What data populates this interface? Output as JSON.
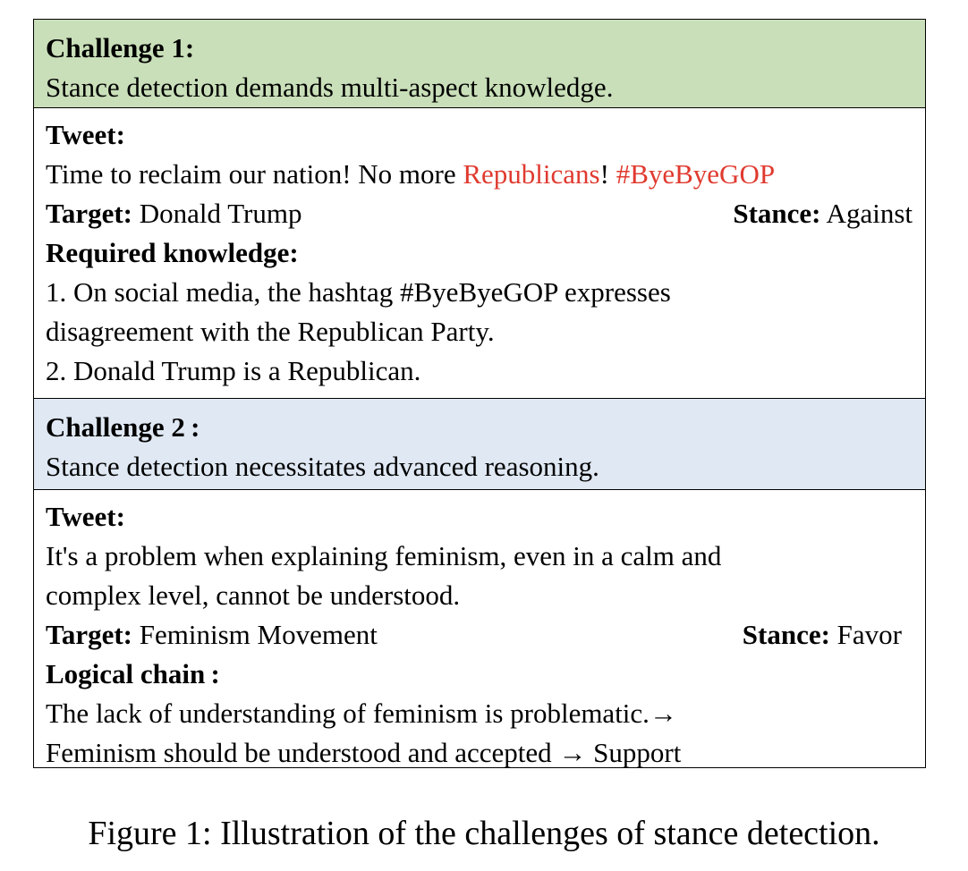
{
  "challenge1": {
    "heading": "Challenge 1:",
    "description": "Stance detection demands multi-aspect knowledge."
  },
  "example1": {
    "tweet_label": "Tweet:",
    "tweet_text_start": "Time to reclaim our nation! No more ",
    "tweet_highlight_1": "Republicans",
    "tweet_text_mid": "! ",
    "tweet_highlight_2": "#ByeByeGOP",
    "target_label": "Target:",
    "target_value": " Donald Trump",
    "stance_label": "Stance:",
    "stance_value": " Against",
    "knowledge_label": "Required knowledge:",
    "knowledge_lines": [
      "1. On social media, the hashtag #ByeByeGOP expresses",
      "disagreement with the Republican Party.",
      "2. Donald Trump is a Republican."
    ]
  },
  "challenge2": {
    "heading": "Challenge 2 :",
    "description": "Stance detection necessitates advanced reasoning."
  },
  "example2": {
    "tweet_label": "Tweet:",
    "tweet_lines": [
      "It's a problem when explaining feminism, even in a calm and",
      "complex level, cannot be understood."
    ],
    "target_label": "Target:",
    "target_value": " Feminism Movement",
    "stance_label": "Stance:",
    "stance_value": " Favor",
    "chain_label": "Logical chain :",
    "chain_lines": [
      "The lack of understanding of feminism is problematic.→",
      "Feminism should be understood and accepted → Support"
    ]
  },
  "colors": {
    "challenge1_bg": "#c9dfb9",
    "challenge2_bg": "#dfe8f3",
    "highlight": "#e03a2f"
  },
  "caption": "Figure 1: Illustration of the challenges of stance detection."
}
